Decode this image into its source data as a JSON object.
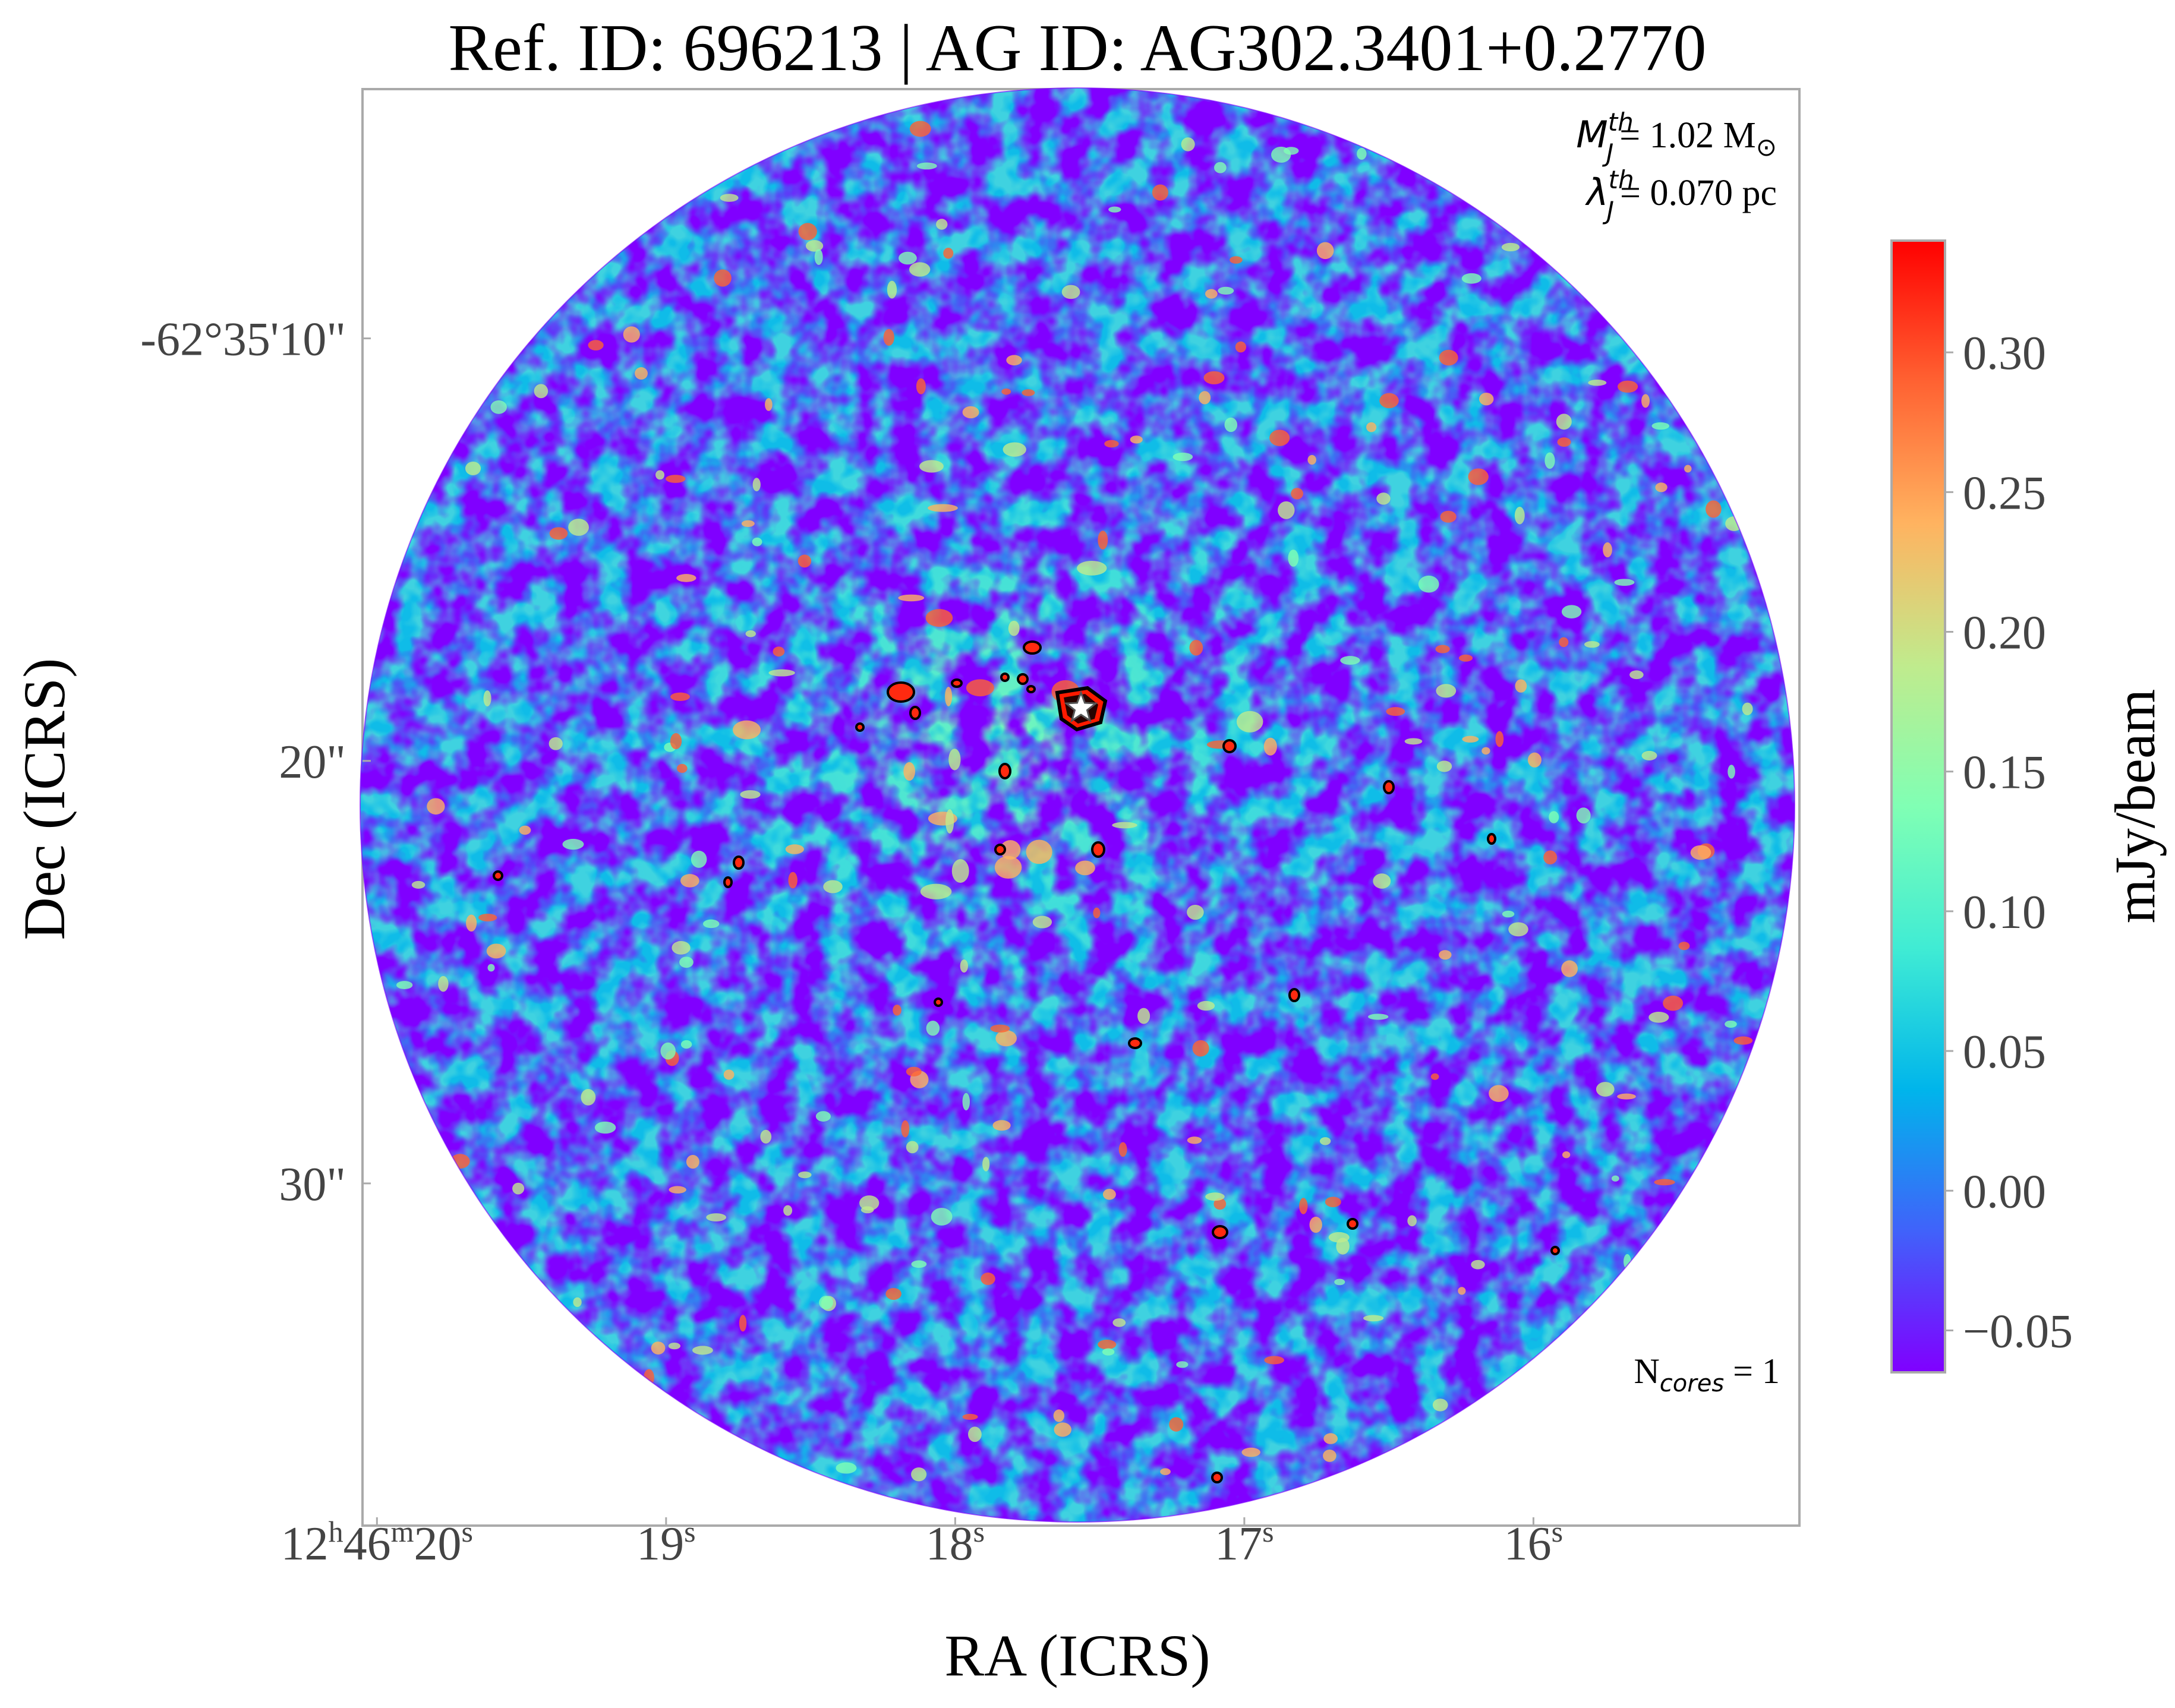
{
  "chart_data": {
    "type": "heatmap",
    "title": "Ref. ID: 696213 | AG ID: AG302.3401+0.2770",
    "xlabel": "RA (ICRS)",
    "ylabel": "Dec (ICRS)",
    "x_ticks": [
      {
        "h": "12",
        "m": "46",
        "s": "20"
      },
      {
        "s": "19"
      },
      {
        "s": "18"
      },
      {
        "s": "17"
      },
      {
        "s": "16"
      }
    ],
    "y_ticks": [
      "-62°35'10\"",
      "20\"",
      "30\""
    ],
    "colorbar": {
      "label": "mJy/beam",
      "ticks": [
        "0.30",
        "0.25",
        "0.20",
        "0.15",
        "0.10",
        "0.05",
        "0.00",
        "−0.05"
      ],
      "tick_values": [
        0.3,
        0.25,
        0.2,
        0.15,
        0.1,
        0.05,
        0.0,
        -0.05
      ],
      "range": [
        -0.065,
        0.34
      ],
      "colormap": "rainbow"
    },
    "annotations": {
      "mass_symbol": "M",
      "mass_sub": "J",
      "mass_sup": "th",
      "mass_value": "= 1.02 M",
      "mass_unit_symbol": "⊙",
      "length_symbol": "λ",
      "length_sub": "J",
      "length_sup": "th",
      "length_value": "= 0.070 pc",
      "ncores_prefix": "N",
      "ncores_sub": "cores",
      "ncores_value": " = 1"
    },
    "field": {
      "shape": "circle",
      "center_ra_sec": 17.69,
      "center_dec_arcsec_offset": 19.4,
      "star_marker": {
        "ra_sec": 17.69,
        "dec_arcsec_offset": 17.6
      }
    },
    "colors": {
      "low": "#8000ff",
      "mid": "#80ffb4",
      "high": "#ff0000",
      "contour": "#000000",
      "marker": "#ffffff"
    }
  }
}
